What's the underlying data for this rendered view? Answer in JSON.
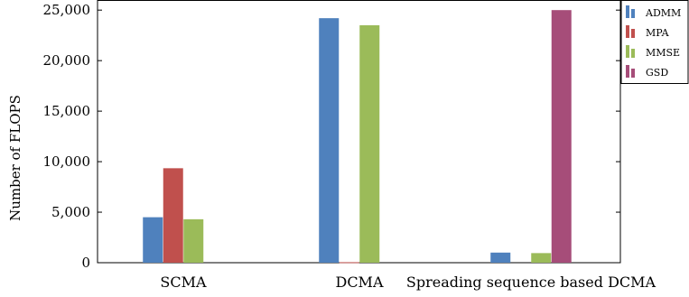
{
  "chart_data": {
    "type": "bar",
    "title": "",
    "xlabel": "",
    "ylabel": "Number of FLOPS",
    "ylim": [
      0,
      26000
    ],
    "yticks": [
      0,
      5000,
      10000,
      15000,
      20000,
      25000
    ],
    "ytick_labels": [
      "0",
      "5,000",
      "10,000",
      "15,000",
      "20,000",
      "25,000"
    ],
    "categories": [
      "SCMA",
      "DCMA",
      "Spreading sequence based DCMA"
    ],
    "series": [
      {
        "name": "ADMM",
        "color": "#4f81bd",
        "values": [
          4500,
          24200,
          1000
        ]
      },
      {
        "name": "MPA",
        "color": "#c0504d",
        "values": [
          9350,
          50,
          0
        ]
      },
      {
        "name": "MMSE",
        "color": "#9bbb59",
        "values": [
          4300,
          23500,
          950
        ]
      },
      {
        "name": "GSD",
        "color": "#a64d79",
        "values": [
          0,
          0,
          25000
        ]
      }
    ],
    "legend_position": "top-right",
    "grid": false
  }
}
